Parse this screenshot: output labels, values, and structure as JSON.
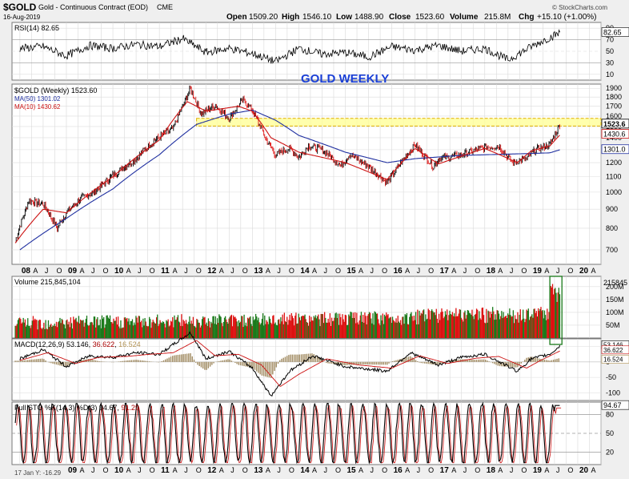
{
  "header": {
    "symbol": "$GOLD",
    "name": "Gold - Continuous Contract (EOD)",
    "exchange": "CME",
    "date": "16-Aug-2019",
    "open_label": "Open",
    "open": "1509.20",
    "high_label": "High",
    "high": "1546.10",
    "low_label": "Low",
    "low": "1488.90",
    "close_label": "Close",
    "close": "1523.60",
    "volume_label": "Volume",
    "volume": "215.8M",
    "chg_label": "Chg",
    "chg": "+15.10 (+1.00%)",
    "brand": "© StockCharts.com"
  },
  "colors": {
    "up": "#1a7a1a",
    "down": "#dd1111",
    "ma50": "#2030a0",
    "ma10": "#cc1111",
    "title": "#1a3fd6",
    "highlight": "#ffff99"
  },
  "chart_data": [
    {
      "type": "line",
      "panel": "RSI",
      "legend": "RSI(14) 82.65",
      "ylim": [
        0,
        100
      ],
      "yticks": [
        "90",
        "70",
        "50",
        "30",
        "10"
      ],
      "last_value": "82.65",
      "x": [
        2008.0,
        2008.5,
        2009.0,
        2009.5,
        2010.0,
        2010.5,
        2011.0,
        2011.5,
        2012.0,
        2012.5,
        2013.0,
        2013.5,
        2014.0,
        2014.5,
        2015.0,
        2015.5,
        2016.0,
        2016.5,
        2017.0,
        2017.5,
        2018.0,
        2018.5,
        2019.0,
        2019.3,
        2019.63
      ],
      "values": [
        55,
        58,
        42,
        60,
        55,
        62,
        58,
        72,
        48,
        55,
        46,
        32,
        55,
        45,
        48,
        40,
        58,
        52,
        60,
        50,
        55,
        35,
        58,
        70,
        82.65
      ]
    },
    {
      "type": "line",
      "panel": "Price",
      "legend": "$GOLD (Weekly) 1523.60",
      "annotation": "GOLD WEEKLY",
      "scale": "log",
      "ylim": [
        640,
        1950
      ],
      "yticks": [
        "1900",
        "1800",
        "1700",
        "1600",
        "1500",
        "1400",
        "1300",
        "1200",
        "1100",
        "1000",
        "900",
        "800",
        "700"
      ],
      "x_ticks": [
        "08",
        "A",
        "J",
        "O",
        "09",
        "A",
        "J",
        "O",
        "10",
        "A",
        "J",
        "O",
        "11",
        "A",
        "J",
        "O",
        "12",
        "A",
        "J",
        "O",
        "13",
        "A",
        "J",
        "O",
        "14",
        "A",
        "J",
        "O",
        "15",
        "A",
        "J",
        "O",
        "16",
        "A",
        "J",
        "O",
        "17",
        "A",
        "J",
        "O",
        "18",
        "A",
        "J",
        "O",
        "19",
        "A",
        "J",
        "O",
        "20",
        "A"
      ],
      "series": [
        {
          "name": "$GOLD (Weekly) 1523.60",
          "x": [
            2007.9,
            2008.2,
            2008.5,
            2008.8,
            2009.0,
            2009.3,
            2009.6,
            2010.0,
            2010.5,
            2010.9,
            2011.3,
            2011.67,
            2011.9,
            2012.2,
            2012.5,
            2012.8,
            2013.0,
            2013.3,
            2013.5,
            2013.8,
            2014.0,
            2014.2,
            2014.5,
            2014.9,
            2015.1,
            2015.5,
            2015.9,
            2016.5,
            2016.9,
            2017.0,
            2017.5,
            2018.0,
            2018.3,
            2018.6,
            2018.9,
            2019.1,
            2019.4,
            2019.63
          ],
          "values": [
            740,
            950,
            930,
            800,
            880,
            960,
            1000,
            1110,
            1230,
            1380,
            1480,
            1890,
            1620,
            1710,
            1580,
            1770,
            1660,
            1380,
            1260,
            1310,
            1240,
            1330,
            1300,
            1180,
            1260,
            1170,
            1060,
            1340,
            1170,
            1230,
            1260,
            1320,
            1330,
            1200,
            1230,
            1300,
            1340,
            1523.6
          ]
        },
        {
          "name": "MA(50) 1301.02",
          "x": [
            2008.0,
            2009.0,
            2010.0,
            2011.0,
            2011.8,
            2012.5,
            2013.0,
            2013.5,
            2014.0,
            2015.0,
            2015.9,
            2016.5,
            2017.5,
            2018.5,
            2019.0,
            2019.4,
            2019.63
          ],
          "values": [
            700,
            850,
            1020,
            1260,
            1520,
            1620,
            1660,
            1560,
            1420,
            1280,
            1200,
            1230,
            1255,
            1265,
            1270,
            1275,
            1301.02
          ]
        },
        {
          "name": "MA(10) 1430.62",
          "x": [
            2007.9,
            2008.5,
            2009.0,
            2010.0,
            2011.0,
            2011.6,
            2012.0,
            2012.7,
            2013.0,
            2013.4,
            2014.0,
            2015.0,
            2015.9,
            2016.5,
            2017.0,
            2018.0,
            2018.7,
            2019.0,
            2019.4,
            2019.63
          ],
          "values": [
            730,
            900,
            880,
            1100,
            1380,
            1750,
            1650,
            1700,
            1650,
            1400,
            1280,
            1200,
            1080,
            1310,
            1190,
            1310,
            1200,
            1290,
            1330,
            1430.62
          ]
        }
      ],
      "last_labels": [
        "1523.6",
        "1430.6",
        "1301.0"
      ],
      "zone": [
        1505,
        1578
      ]
    },
    {
      "type": "bar",
      "panel": "Volume",
      "legend": "Volume 215,845,104",
      "ylim": [
        0,
        240
      ],
      "yticks": [
        "200M",
        "150M",
        "100M",
        "50M"
      ],
      "last_value": "215845"
    },
    {
      "type": "line",
      "panel": "MACD",
      "legend_prefix": "MACD(12,26,9)",
      "legend_values": [
        "53.146",
        "36.622",
        "16.524"
      ],
      "ylim": [
        -125,
        75
      ],
      "yticks": [
        "50",
        "0",
        "-50",
        "-100"
      ],
      "last_labels": [
        "53.146",
        "36.622",
        "16.524"
      ],
      "series": [
        {
          "name": "MACD",
          "x": [
            2008.0,
            2008.5,
            2009.0,
            2009.5,
            2010.0,
            2010.5,
            2011.0,
            2011.67,
            2012.0,
            2012.5,
            2013.0,
            2013.4,
            2013.8,
            2014.3,
            2015.0,
            2015.9,
            2016.4,
            2017.0,
            2017.5,
            2018.0,
            2018.7,
            2019.0,
            2019.4,
            2019.63
          ],
          "values": [
            10,
            40,
            -15,
            20,
            15,
            30,
            25,
            95,
            10,
            35,
            -20,
            -110,
            -30,
            20,
            -15,
            -30,
            30,
            -10,
            15,
            25,
            -30,
            10,
            25,
            53.146
          ]
        },
        {
          "name": "Signal",
          "x": [
            2008.0,
            2008.6,
            2009.2,
            2009.7,
            2010.3,
            2010.8,
            2011.3,
            2011.8,
            2012.2,
            2012.7,
            2013.2,
            2013.6,
            2014.0,
            2014.6,
            2015.3,
            2016.0,
            2016.6,
            2017.2,
            2017.8,
            2018.3,
            2018.9,
            2019.2,
            2019.63
          ],
          "values": [
            5,
            30,
            -5,
            15,
            18,
            25,
            30,
            70,
            20,
            25,
            -10,
            -80,
            -40,
            10,
            -10,
            -20,
            20,
            -5,
            12,
            18,
            -20,
            5,
            36.622
          ]
        }
      ]
    },
    {
      "type": "line",
      "panel": "STO",
      "legend_prefix": "Full STO %K(14,3) %D(3)",
      "legend_values": [
        "94.67",
        "91.29"
      ],
      "ylim": [
        0,
        100
      ],
      "yticks": [
        "80",
        "50",
        "20"
      ],
      "last_value": "94.67",
      "x_ticks": [
        "09",
        "A",
        "J",
        "O",
        "10",
        "A",
        "J",
        "O",
        "11",
        "A",
        "J",
        "O",
        "12",
        "A",
        "J",
        "O",
        "13",
        "A",
        "J",
        "O",
        "14",
        "A",
        "J",
        "O",
        "15",
        "A",
        "J",
        "O",
        "16",
        "A",
        "J",
        "O",
        "17",
        "A",
        "J",
        "O",
        "18",
        "A",
        "J",
        "O",
        "19",
        "A",
        "J",
        "O",
        "20",
        "A"
      ],
      "footer": "17 Jan Y: -16.29"
    }
  ]
}
